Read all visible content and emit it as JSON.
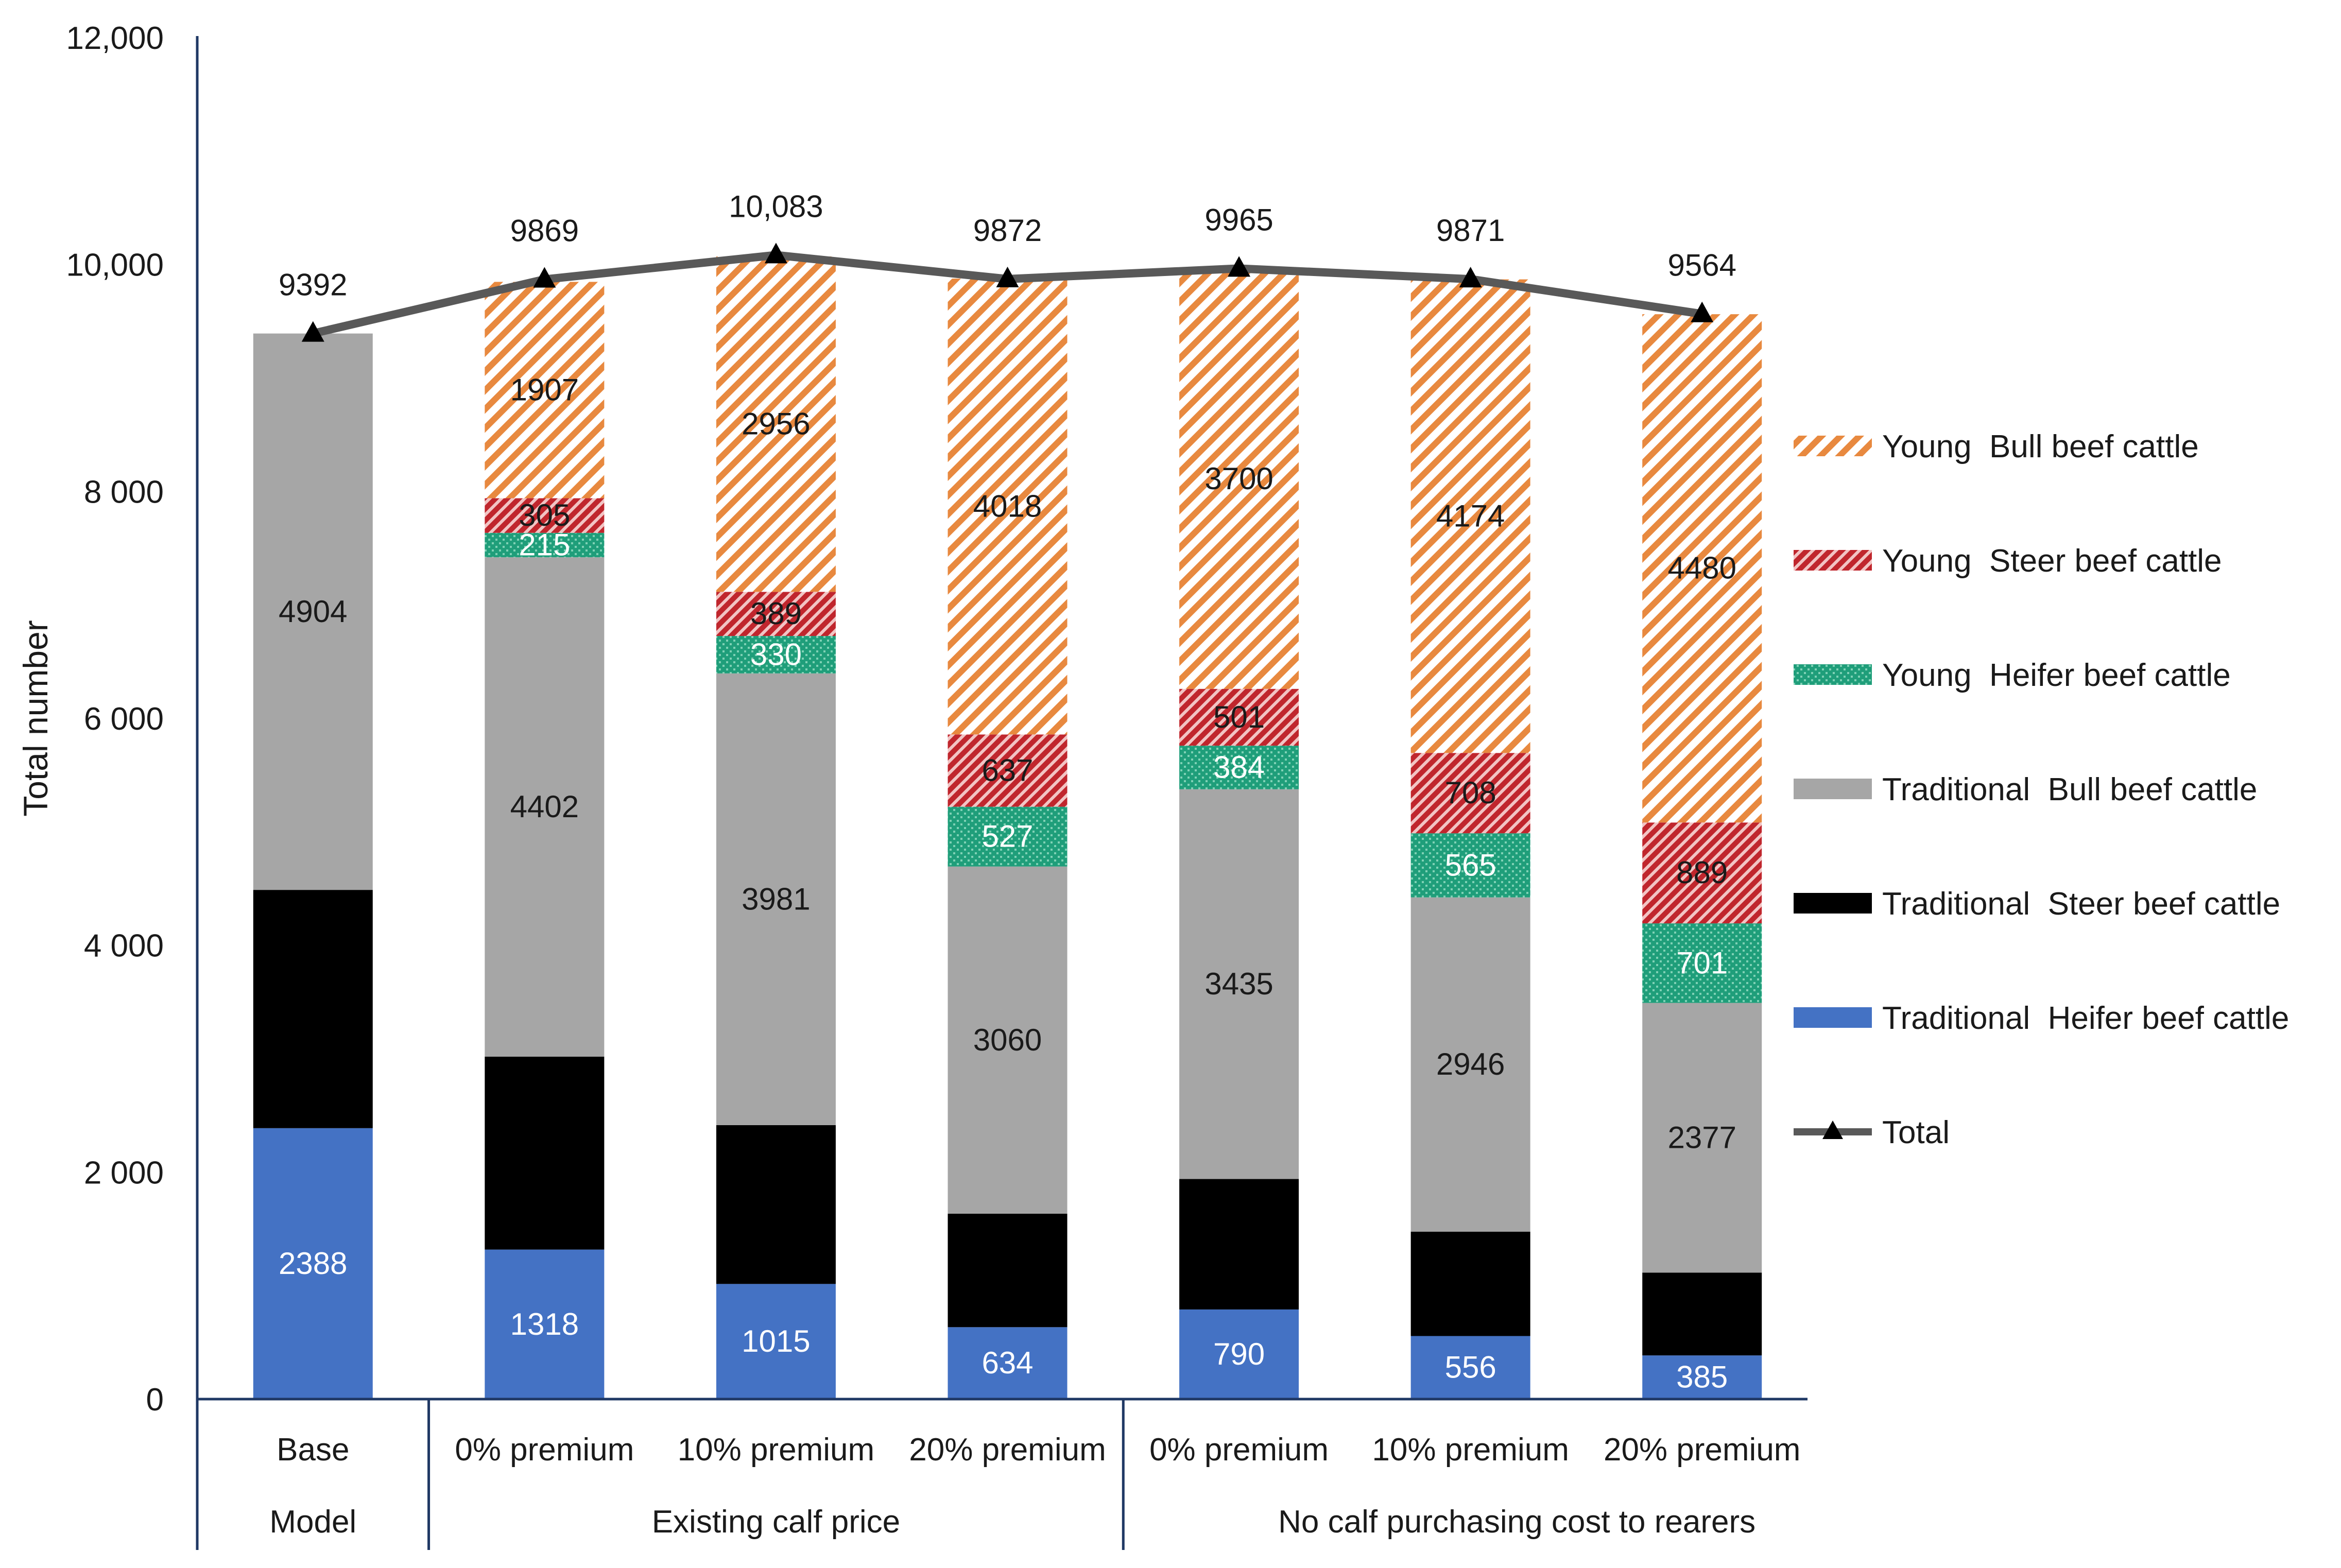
{
  "chart_data": {
    "type": "bar",
    "stacked": true,
    "categories": [
      "Base",
      "0% premium",
      "10% premium",
      "20% premium",
      "0% premium",
      "10% premium",
      "20% premium"
    ],
    "groups": [
      {
        "label": "Model",
        "categories": [
          0
        ]
      },
      {
        "label": "Existing calf price",
        "categories": [
          1,
          2,
          3
        ]
      },
      {
        "label": "No calf purchasing cost to rearers",
        "categories": [
          4,
          5,
          6
        ]
      }
    ],
    "ylabel": "Total number",
    "ylim": [
      0,
      12000
    ],
    "yticks": [
      0,
      2000,
      4000,
      6000,
      8000,
      10000,
      12000
    ],
    "ytick_labels": [
      "0",
      "2 000",
      "4 000",
      "6 000",
      "8 000",
      "10,000",
      "12,000"
    ],
    "series": [
      {
        "name": "Traditional  Heifer beef cattle",
        "color": "#4472c4",
        "pattern": "solid",
        "values": [
          2388,
          1318,
          1015,
          634,
          790,
          556,
          385
        ],
        "labels": [
          "2388",
          "1318",
          "1015",
          "634",
          "790",
          "556",
          "385"
        ]
      },
      {
        "name": "Traditional  Steer beef cattle",
        "color": "#000000",
        "pattern": "solid",
        "values": [
          2100,
          1700,
          1400,
          1000,
          1150,
          920,
          730
        ],
        "labels": [
          "",
          "",
          "",
          "",
          "",
          "",
          ""
        ]
      },
      {
        "name": "Traditional  Bull beef cattle",
        "color": "#a6a6a6",
        "pattern": "solid",
        "values": [
          4904,
          4402,
          3981,
          3060,
          3435,
          2946,
          2377
        ],
        "labels": [
          "4904",
          "4402",
          "3981",
          "3060",
          "3435",
          "2946",
          "2377"
        ]
      },
      {
        "name": "Young  Heifer beef cattle",
        "color": "#1f9e7a",
        "pattern": "dots",
        "values": [
          0,
          215,
          330,
          527,
          384,
          565,
          701
        ],
        "labels": [
          "",
          "215",
          "330",
          "527",
          "384",
          "565",
          "701"
        ]
      },
      {
        "name": "Young  Steer beef cattle",
        "color": "#c0262d",
        "pattern": "hatch",
        "values": [
          0,
          305,
          389,
          637,
          501,
          708,
          889
        ],
        "labels": [
          "",
          "305",
          "389",
          "637",
          "501",
          "708",
          "889"
        ]
      },
      {
        "name": "Young  Bull beef cattle",
        "color": "#e8893f",
        "pattern": "hatch",
        "values": [
          0,
          1907,
          2956,
          4018,
          3700,
          4174,
          4480
        ],
        "labels": [
          "",
          "1907",
          "2956",
          "4018",
          "3700",
          "4174",
          "4480"
        ]
      }
    ],
    "total": {
      "name": "Total",
      "type": "line",
      "color": "#595959",
      "values": [
        9392,
        9869,
        10083,
        9872,
        9965,
        9871,
        9564
      ],
      "labels": [
        "9392",
        "9869",
        "10,083",
        "9872",
        "9965",
        "9871",
        "9564"
      ]
    },
    "legend_order": [
      "Young  Bull beef cattle",
      "Young  Steer beef cattle",
      "Young  Heifer beef cattle",
      "Traditional  Bull beef cattle",
      "Traditional  Steer beef cattle",
      "Traditional  Heifer beef cattle",
      "Total"
    ],
    "legend_position": "right",
    "grid": false
  }
}
